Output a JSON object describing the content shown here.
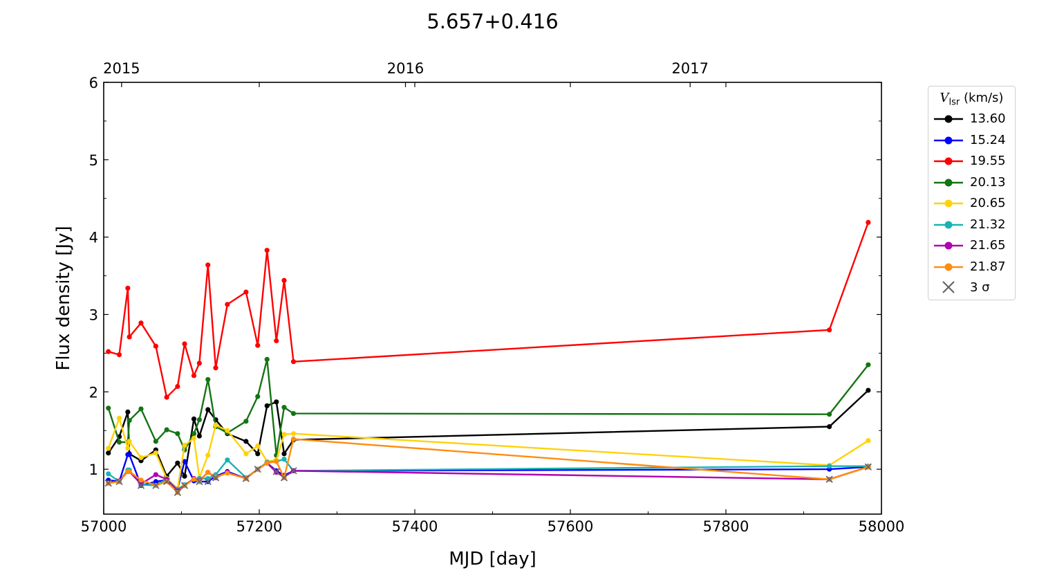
{
  "chart_data": {
    "type": "line",
    "title": "5.657+0.416",
    "xlabel": "MJD [day]",
    "ylabel": "Flux density [Jy]",
    "xlim": [
      57000,
      58000
    ],
    "ylim": [
      0.42,
      6
    ],
    "xticks": [
      "57000",
      "57200",
      "57400",
      "57600",
      "57800",
      "58000"
    ],
    "yticks": [
      "1",
      "2",
      "3",
      "4",
      "5",
      "6"
    ],
    "top_axis_ticks": [
      {
        "label": "2015",
        "mjd": 57023
      },
      {
        "label": "2016",
        "mjd": 57388
      },
      {
        "label": "2017",
        "mjd": 57754
      }
    ],
    "legend": {
      "title_symbol": "V",
      "title_sub": "lsr",
      "title_unit": " (km/s)",
      "sigma_label": "3 σ",
      "placement": "outside-right"
    },
    "x": [
      57006,
      57020,
      57031,
      57033,
      57048,
      57067,
      57081,
      57095,
      57104,
      57116,
      57123,
      57134,
      57144,
      57159,
      57183,
      57198,
      57210,
      57222,
      57232,
      57244,
      57933,
      57983
    ],
    "series": [
      {
        "name": "13.60",
        "color": "#000000",
        "values": [
          1.21,
          1.42,
          1.74,
          1.2,
          1.11,
          1.25,
          0.91,
          1.08,
          0.91,
          1.65,
          1.43,
          1.77,
          1.64,
          1.46,
          1.36,
          1.2,
          1.82,
          1.87,
          1.2,
          1.38,
          1.55,
          2.02
        ]
      },
      {
        "name": "15.24",
        "color": "#0000ff",
        "values": [
          0.86,
          0.84,
          1.19,
          1.19,
          0.79,
          0.84,
          0.86,
          0.75,
          1.1,
          0.85,
          0.84,
          0.84,
          0.91,
          0.97,
          0.88,
          1.0,
          1.08,
          0.98,
          0.92,
          0.98,
          1.0,
          1.03
        ]
      },
      {
        "name": "19.55",
        "color": "#ff0000",
        "values": [
          2.52,
          2.48,
          3.34,
          2.71,
          2.89,
          2.59,
          1.93,
          2.07,
          2.62,
          2.21,
          2.37,
          3.64,
          2.31,
          3.13,
          3.29,
          2.6,
          3.83,
          2.66,
          3.44,
          2.39,
          2.8,
          4.19
        ]
      },
      {
        "name": "20.13",
        "color": "#147414",
        "values": [
          1.79,
          1.35,
          1.35,
          1.63,
          1.78,
          1.36,
          1.51,
          1.46,
          1.25,
          1.46,
          1.64,
          2.16,
          1.55,
          1.47,
          1.62,
          1.94,
          2.42,
          1.18,
          1.8,
          1.72,
          1.71,
          2.35
        ]
      },
      {
        "name": "20.65",
        "color": "#ffd20a",
        "values": [
          1.27,
          1.66,
          1.27,
          1.36,
          1.15,
          1.21,
          0.88,
          0.75,
          1.31,
          1.4,
          0.89,
          1.18,
          1.57,
          1.5,
          1.2,
          1.3,
          1.1,
          1.12,
          1.45,
          1.46,
          1.05,
          1.37
        ]
      },
      {
        "name": "21.32",
        "color": "#1ab3b3",
        "values": [
          0.94,
          0.84,
          0.99,
          0.99,
          0.8,
          0.79,
          0.87,
          0.74,
          0.8,
          0.87,
          0.88,
          0.88,
          0.93,
          1.12,
          0.89,
          1.0,
          1.09,
          1.1,
          1.13,
          0.98,
          1.04,
          1.04
        ]
      },
      {
        "name": "21.65",
        "color": "#b000b0",
        "values": [
          0.82,
          0.85,
          0.97,
          0.97,
          0.81,
          0.93,
          0.87,
          0.72,
          0.79,
          0.88,
          0.85,
          0.96,
          0.89,
          0.96,
          0.88,
          1.0,
          1.08,
          0.96,
          0.9,
          0.98,
          0.87,
          1.03
        ]
      },
      {
        "name": "21.87",
        "color": "#ff8c0f",
        "values": [
          0.82,
          0.84,
          0.97,
          0.97,
          0.86,
          0.79,
          0.84,
          0.7,
          0.79,
          0.87,
          0.84,
          0.96,
          0.9,
          0.95,
          0.88,
          1.0,
          1.08,
          1.1,
          0.89,
          1.39,
          0.87,
          1.03
        ]
      }
    ],
    "three_sigma_x": [
      57006,
      57020,
      57048,
      57067,
      57081,
      57095,
      57104,
      57123,
      57134,
      57144,
      57183,
      57198,
      57222,
      57232,
      57244,
      57933,
      57983
    ],
    "three_sigma_y": [
      0.82,
      0.84,
      0.79,
      0.79,
      0.84,
      0.7,
      0.79,
      0.84,
      0.84,
      0.89,
      0.88,
      1.0,
      0.97,
      0.89,
      0.98,
      0.87,
      1.03
    ]
  }
}
